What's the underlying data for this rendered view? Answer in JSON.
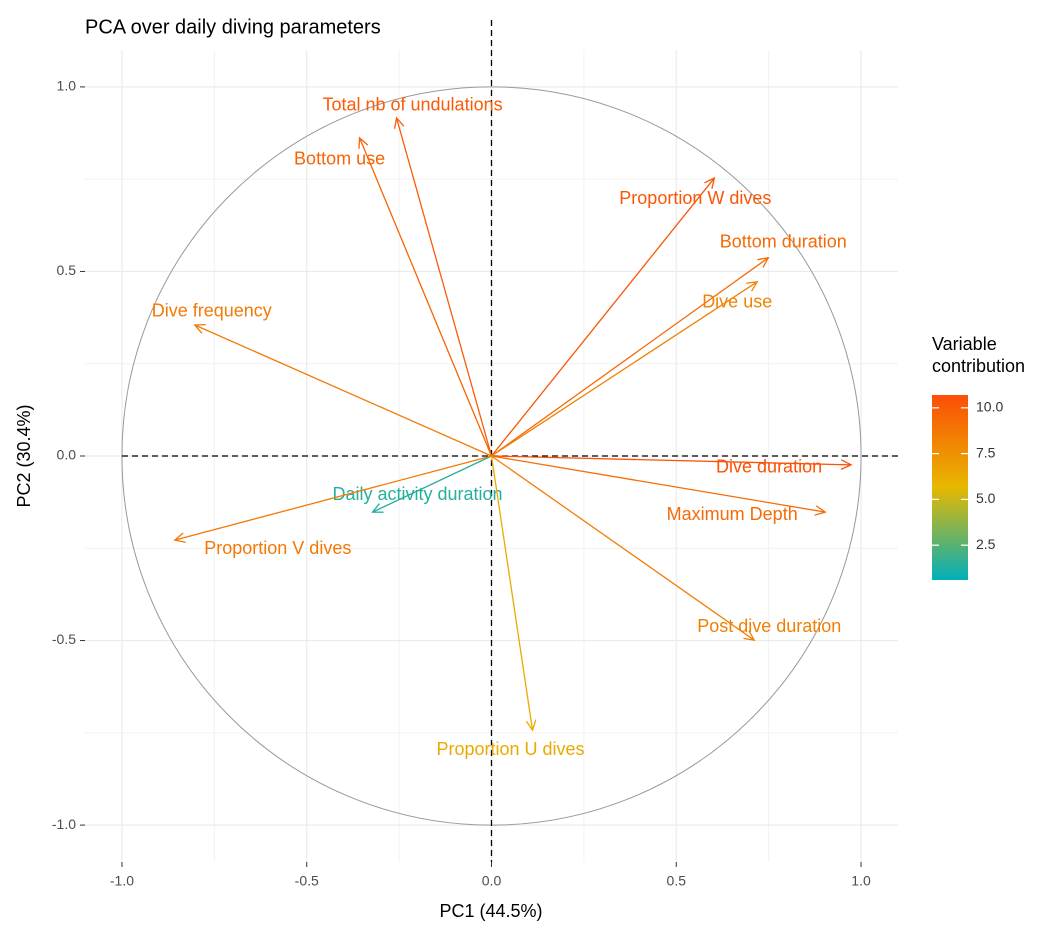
{
  "chart_data": {
    "type": "biplot",
    "title": "PCA over daily diving parameters",
    "x_label": "PC1 (44.5%)",
    "y_label": "PC2 (30.4%)",
    "xlim": [
      -1.1,
      1.1
    ],
    "ylim": [
      -1.1,
      1.1
    ],
    "xticks": [
      {
        "value": -1,
        "label": "-1.0"
      },
      {
        "value": -0.5,
        "label": "-0.5"
      },
      {
        "value": 0,
        "label": "0.0"
      },
      {
        "value": 0.5,
        "label": "0.5"
      },
      {
        "value": 1,
        "label": "1.0"
      }
    ],
    "yticks": [
      {
        "value": -1,
        "label": "-1.0"
      },
      {
        "value": -0.5,
        "label": "-0.5"
      },
      {
        "value": 0,
        "label": "0.0"
      },
      {
        "value": 0.5,
        "label": "0.5"
      },
      {
        "value": 1,
        "label": "1.0"
      }
    ],
    "grid": true,
    "circle": true,
    "variables": [
      {
        "name": "Total nb of undulations",
        "x": -0.257,
        "y": 0.916,
        "contribution": 10.1
      },
      {
        "name": "Bottom use",
        "x": -0.357,
        "y": 0.862,
        "contribution": 9.7
      },
      {
        "name": "Proportion W dives",
        "x": 0.603,
        "y": 0.753,
        "contribution": 10.3
      },
      {
        "name": "Bottom duration",
        "x": 0.749,
        "y": 0.537,
        "contribution": 9.4
      },
      {
        "name": "Dive use",
        "x": 0.719,
        "y": 0.472,
        "contribution": 8.2
      },
      {
        "name": "Dive frequency",
        "x": -0.803,
        "y": 0.355,
        "contribution": 8.6
      },
      {
        "name": "Dive duration",
        "x": 0.973,
        "y": -0.024,
        "contribution": 10.5
      },
      {
        "name": "Maximum Depth",
        "x": 0.903,
        "y": -0.152,
        "contribution": 9.3
      },
      {
        "name": "Daily activity duration",
        "x": -0.322,
        "y": -0.152,
        "contribution": 1.4
      },
      {
        "name": "Proportion V dives",
        "x": -0.857,
        "y": -0.228,
        "contribution": 8.7
      },
      {
        "name": "Post dive duration",
        "x": 0.711,
        "y": -0.499,
        "contribution": 8.4
      },
      {
        "name": "Proportion U dives",
        "x": 0.111,
        "y": -0.743,
        "contribution": 6.3
      }
    ],
    "legend": {
      "title": "Variable contribution",
      "position": "right",
      "colors": [
        "#00AFBB",
        "#E7B800",
        "#FC4E07"
      ],
      "lim": [
        0.6,
        10.7
      ],
      "ticks": [
        2.5,
        {
          "value": 5,
          "label": "5.0"
        },
        7.5,
        {
          "value": 10,
          "label": "10.0"
        }
      ]
    }
  }
}
